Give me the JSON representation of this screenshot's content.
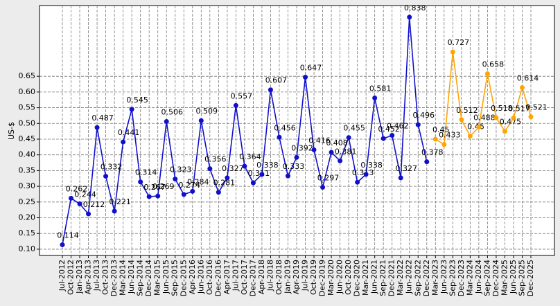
{
  "chart_data": {
    "type": "line",
    "ylabel": "US-$",
    "categories": [
      "Jul-2012",
      "Oct-2012",
      "Jan-2013",
      "Apr-2013",
      "Jul-2013",
      "Oct-2013",
      "Dec-2013",
      "Mar-2014",
      "Jun-2014",
      "Sep-2014",
      "Dec-2014",
      "Mar-2015",
      "Jun-2015",
      "Sep-2015",
      "Dec-2015",
      "Apr-2016",
      "Jun-2016",
      "Oct-2016",
      "Dec-2016",
      "Apr-2017",
      "Jul-2017",
      "Oct-2017",
      "Dec-2017",
      "Apr-2018",
      "Jul-2018",
      "Oct-2018",
      "Jan-2019",
      "Apr-2019",
      "Jul-2019",
      "Oct-2019",
      "Dec-2019",
      "Mar-2020",
      "Jun-2020",
      "Oct-2020",
      "Dec-2020",
      "Mar-2021",
      "Jun-2021",
      "Sep-2021",
      "Dec-2021",
      "Mar-2022",
      "Jun-2022",
      "Sep-2022",
      "Dec-2022",
      "Mar-2023",
      "Jun-2023",
      "Sep-2023",
      "Dec-2023",
      "Mar-2024",
      "Jun-2024",
      "Sep-2024",
      "Dec-2024",
      "Mar-2025",
      "Jun-2025",
      "Sep-2025",
      "Dec-2025"
    ],
    "series": [
      {
        "color": "#1010cc",
        "values": [
          0.114,
          0.262,
          0.244,
          0.212,
          0.487,
          0.332,
          0.221,
          0.441,
          0.545,
          0.314,
          0.267,
          0.269,
          0.506,
          0.323,
          0.274,
          0.284,
          0.509,
          0.356,
          0.281,
          0.327,
          0.557,
          0.364,
          0.311,
          0.338,
          0.607,
          0.456,
          0.333,
          0.392,
          0.647,
          0.416,
          0.297,
          0.408,
          0.381,
          0.455,
          0.313,
          0.338,
          0.581,
          0.452,
          0.462,
          0.327,
          0.838,
          0.496,
          0.378,
          null,
          null,
          null,
          null,
          null,
          null,
          null,
          null,
          null,
          null,
          null,
          null
        ]
      },
      {
        "color": "#ffa500",
        "values": [
          null,
          null,
          null,
          null,
          null,
          null,
          null,
          null,
          null,
          null,
          null,
          null,
          null,
          null,
          null,
          null,
          null,
          null,
          null,
          null,
          null,
          null,
          null,
          null,
          null,
          null,
          null,
          null,
          null,
          null,
          null,
          null,
          null,
          null,
          null,
          null,
          null,
          null,
          null,
          null,
          null,
          null,
          null,
          0.45,
          0.433,
          0.727,
          0.512,
          0.46,
          0.488,
          0.658,
          0.518,
          0.475,
          0.517,
          0.614,
          0.521
        ]
      }
    ],
    "ylim": [
      0.08,
      0.875
    ],
    "yticks": [
      {
        "value": 0.1,
        "label": "0.10"
      },
      0.15,
      {
        "value": 0.2,
        "label": "0.20"
      },
      0.25,
      {
        "value": 0.3,
        "label": "0.30"
      },
      0.35,
      {
        "value": 0.4,
        "label": "0.40"
      },
      0.45,
      {
        "value": 0.5,
        "label": "0.50"
      },
      0.55,
      {
        "value": 0.6,
        "label": "0.60"
      },
      0.65
    ],
    "grid": true
  }
}
